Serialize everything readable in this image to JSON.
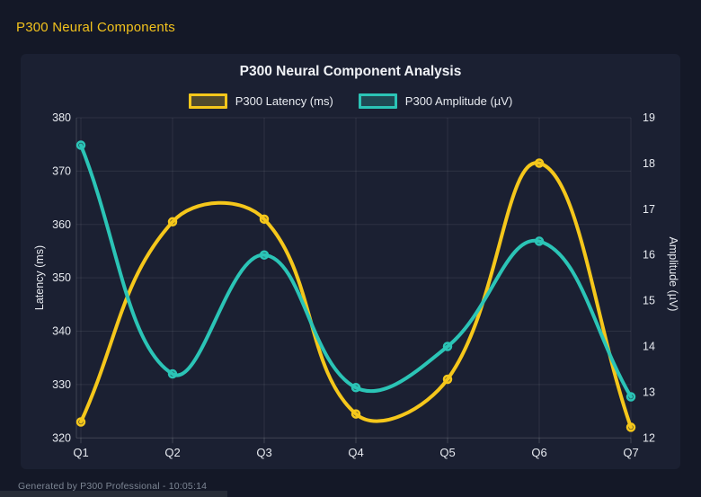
{
  "header": {
    "title": "P300 Neural Components"
  },
  "footer": {
    "text": "Generated by P300 Professional - 10:05:14"
  },
  "colors": {
    "page_bg": "#141827",
    "panel_bg": "#1b2032",
    "header_accent": "#f2c21d",
    "grid": "rgba(255,255,255,0.08)",
    "axis_border": "rgba(255,255,255,0.16)",
    "tick_text": "#e7eaf0",
    "title_text": "#f0f2f6",
    "footer_text": "#7d8694"
  },
  "chart_data": {
    "type": "line",
    "title": "P300 Neural Component Analysis",
    "categories": [
      "Q1",
      "Q2",
      "Q3",
      "Q4",
      "Q5",
      "Q6",
      "Q7"
    ],
    "series": [
      {
        "name": "P300 Latency (ms)",
        "axis": "left",
        "color": "#f5c71b",
        "fill": "rgba(245,199,27,0.25)",
        "values": [
          323,
          360.5,
          361,
          324.5,
          331,
          371.5,
          322
        ]
      },
      {
        "name": "P300 Amplitude (µV)",
        "axis": "right",
        "color": "#2bc4b6",
        "fill": "rgba(43,196,182,0.25)",
        "values": [
          18.4,
          13.4,
          16.0,
          13.1,
          14.0,
          16.3,
          12.9
        ]
      }
    ],
    "left_axis": {
      "label": "Latency (ms)",
      "min": 320,
      "max": 380,
      "step": 10,
      "ticks": [
        380,
        370,
        360,
        350,
        340,
        330,
        320
      ]
    },
    "right_axis": {
      "label": "Amplitude (µV)",
      "min": 12,
      "max": 19,
      "step": 1,
      "ticks": [
        19,
        18,
        17,
        16,
        15,
        14,
        13,
        12
      ]
    },
    "grid": true,
    "legend_position": "top",
    "line_tension": 0.4
  }
}
